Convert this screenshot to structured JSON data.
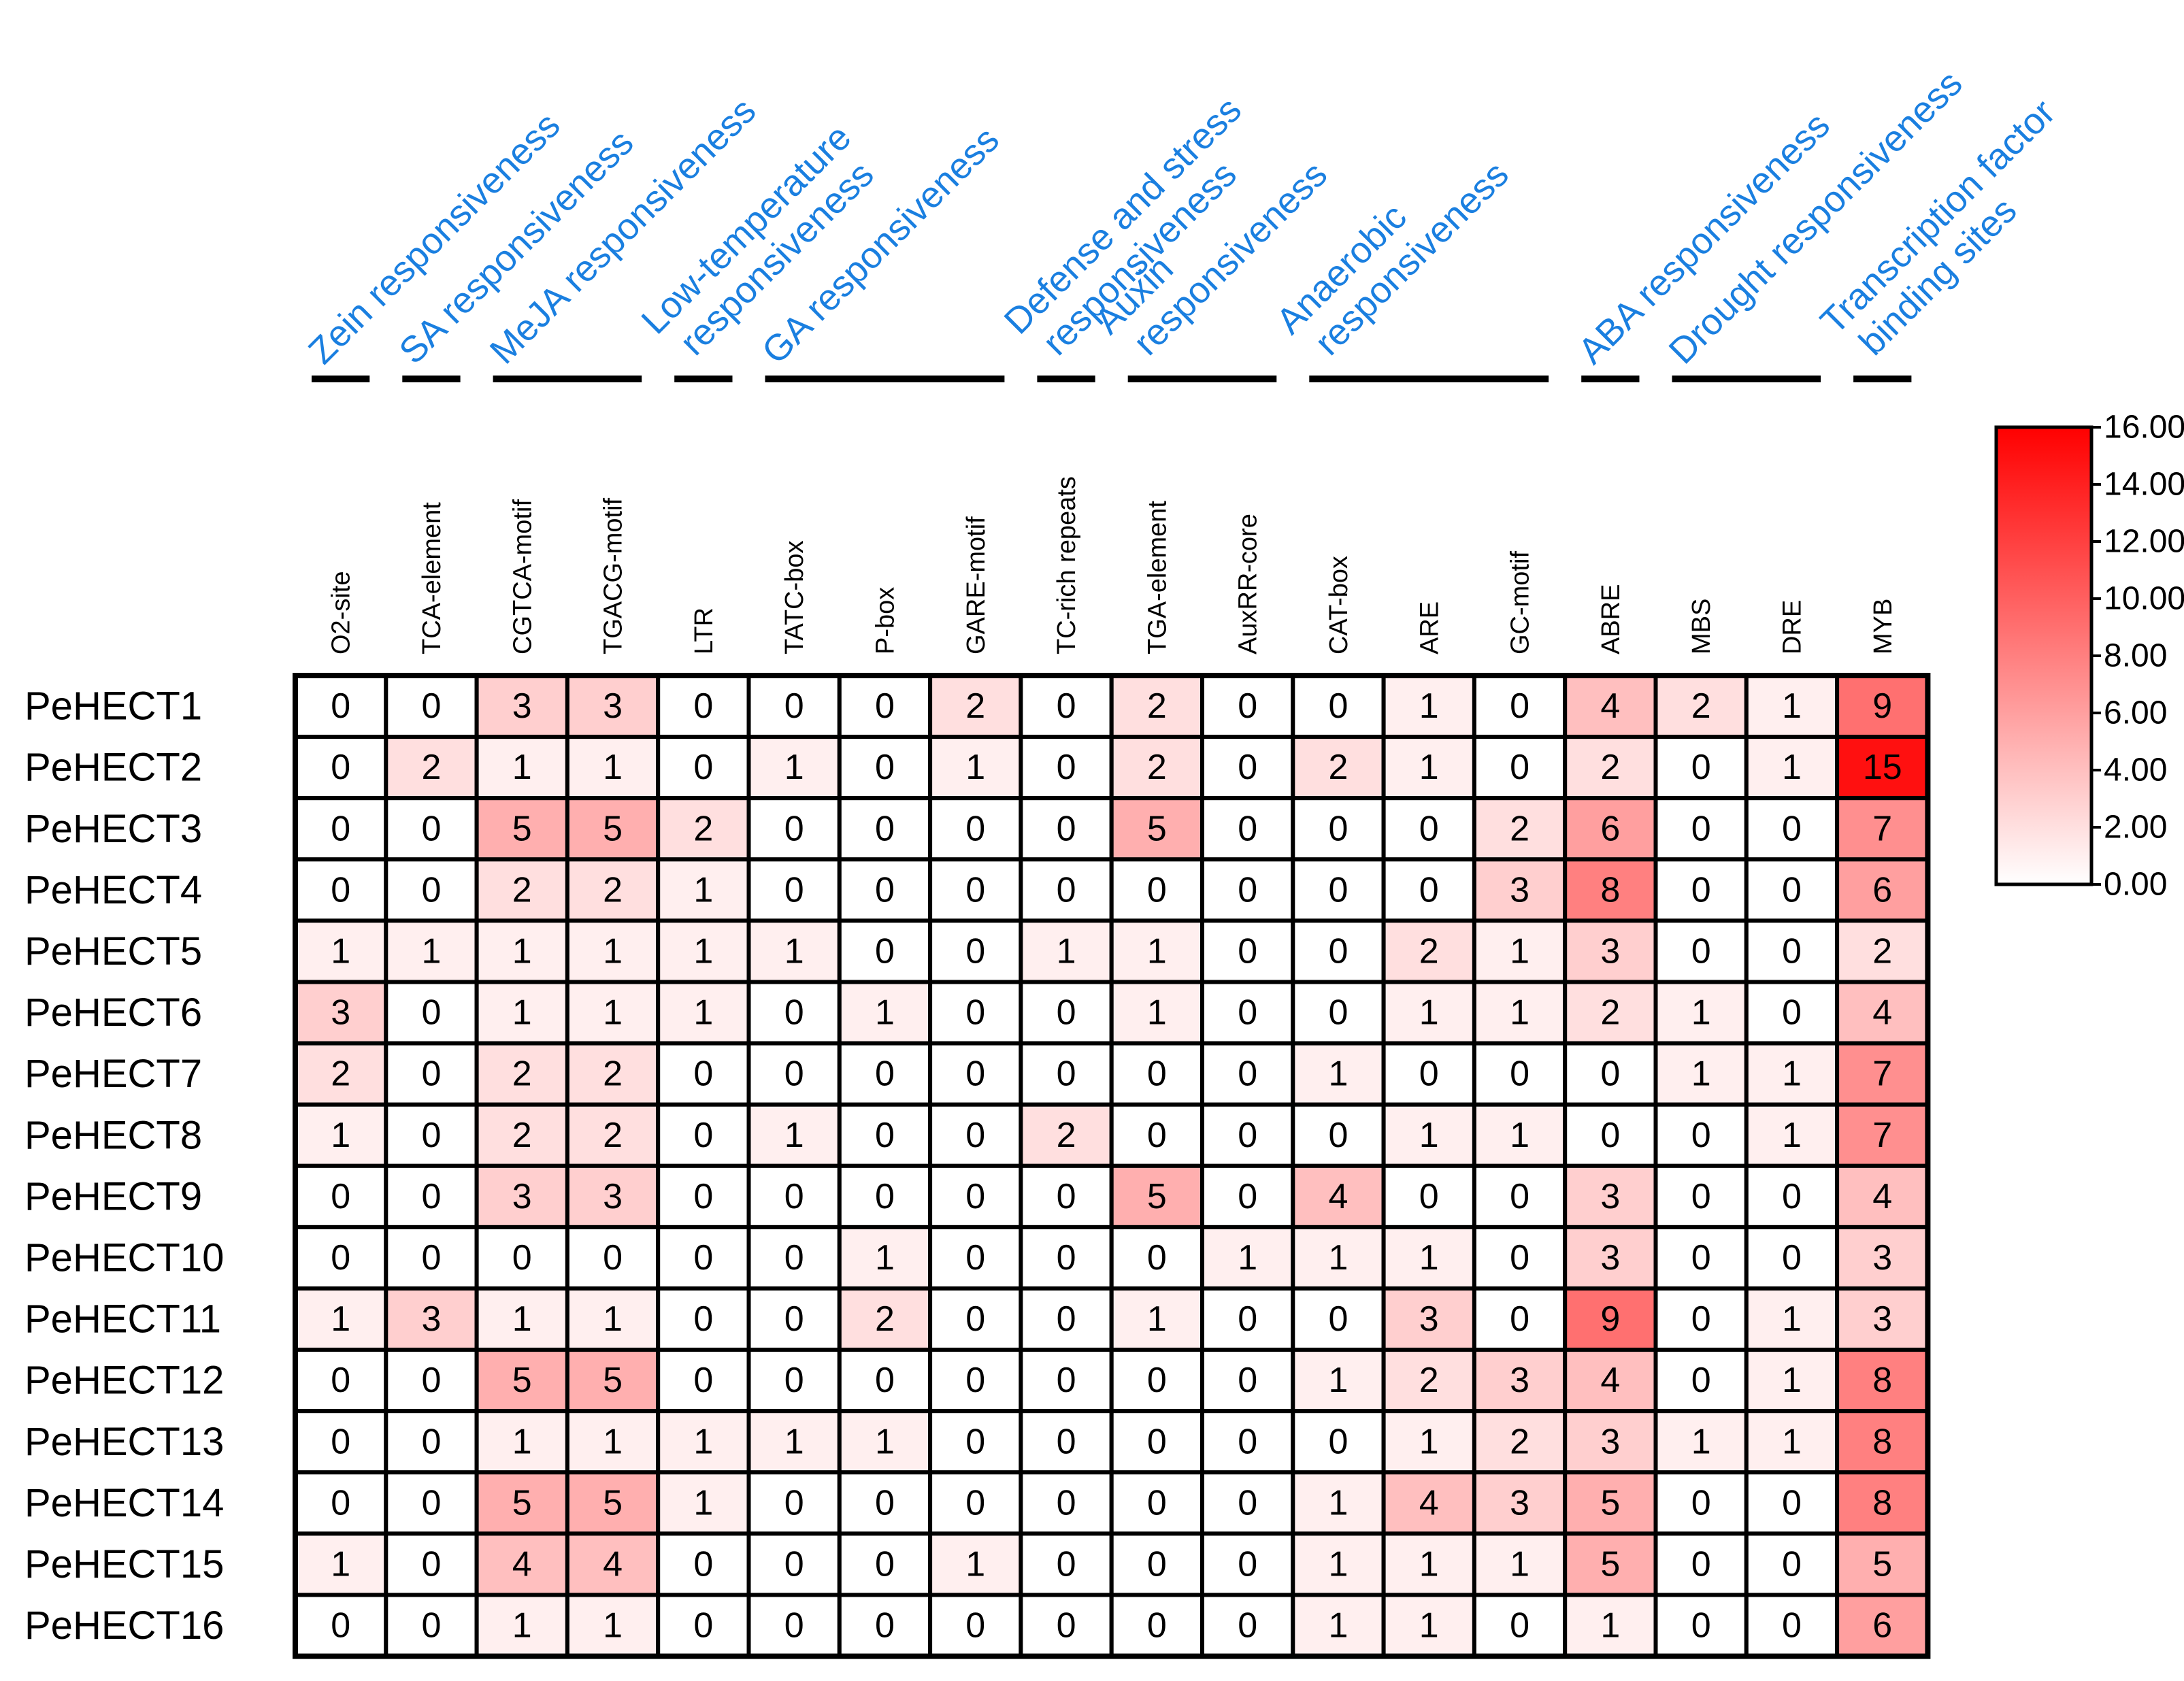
{
  "chart_data": {
    "type": "heatmap",
    "columns": [
      "O2-site",
      "TCA-element",
      "CGTCA-motif",
      "TGACG-motif",
      "LTR",
      "TATC-box",
      "P-box",
      "GARE-motif",
      "TC-rich repeats",
      "TGA-element",
      "AuxRR-core",
      "CAT-box",
      "ARE",
      "GC-motif",
      "ABRE",
      "MBS",
      "DRE",
      "MYB"
    ],
    "rows": [
      "PeHECT1",
      "PeHECT2",
      "PeHECT3",
      "PeHECT4",
      "PeHECT5",
      "PeHECT6",
      "PeHECT7",
      "PeHECT8",
      "PeHECT9",
      "PeHECT10",
      "PeHECT11",
      "PeHECT12",
      "PeHECT13",
      "PeHECT14",
      "PeHECT15",
      "PeHECT16"
    ],
    "values": [
      [
        0,
        0,
        3,
        3,
        0,
        0,
        0,
        2,
        0,
        2,
        0,
        0,
        1,
        0,
        4,
        2,
        1,
        9
      ],
      [
        0,
        2,
        1,
        1,
        0,
        1,
        0,
        1,
        0,
        2,
        0,
        2,
        1,
        0,
        2,
        0,
        1,
        15
      ],
      [
        0,
        0,
        5,
        5,
        2,
        0,
        0,
        0,
        0,
        5,
        0,
        0,
        0,
        2,
        6,
        0,
        0,
        7
      ],
      [
        0,
        0,
        2,
        2,
        1,
        0,
        0,
        0,
        0,
        0,
        0,
        0,
        0,
        3,
        8,
        0,
        0,
        6
      ],
      [
        1,
        1,
        1,
        1,
        1,
        1,
        0,
        0,
        1,
        1,
        0,
        0,
        2,
        1,
        3,
        0,
        0,
        2
      ],
      [
        3,
        0,
        1,
        1,
        1,
        0,
        1,
        0,
        0,
        1,
        0,
        0,
        1,
        1,
        2,
        1,
        0,
        4
      ],
      [
        2,
        0,
        2,
        2,
        0,
        0,
        0,
        0,
        0,
        0,
        0,
        1,
        0,
        0,
        0,
        1,
        1,
        7
      ],
      [
        1,
        0,
        2,
        2,
        0,
        1,
        0,
        0,
        2,
        0,
        0,
        0,
        1,
        1,
        0,
        0,
        1,
        7
      ],
      [
        0,
        0,
        3,
        3,
        0,
        0,
        0,
        0,
        0,
        5,
        0,
        4,
        0,
        0,
        3,
        0,
        0,
        4
      ],
      [
        0,
        0,
        0,
        0,
        0,
        0,
        1,
        0,
        0,
        0,
        1,
        1,
        1,
        0,
        3,
        0,
        0,
        3
      ],
      [
        1,
        3,
        1,
        1,
        0,
        0,
        2,
        0,
        0,
        1,
        0,
        0,
        3,
        0,
        9,
        0,
        1,
        3
      ],
      [
        0,
        0,
        5,
        5,
        0,
        0,
        0,
        0,
        0,
        0,
        0,
        1,
        2,
        3,
        4,
        0,
        1,
        8
      ],
      [
        0,
        0,
        1,
        1,
        1,
        1,
        1,
        0,
        0,
        0,
        0,
        0,
        1,
        2,
        3,
        1,
        1,
        8
      ],
      [
        0,
        0,
        5,
        5,
        1,
        0,
        0,
        0,
        0,
        0,
        0,
        1,
        4,
        3,
        5,
        0,
        0,
        8
      ],
      [
        1,
        0,
        4,
        4,
        0,
        0,
        0,
        1,
        0,
        0,
        0,
        1,
        1,
        1,
        5,
        0,
        0,
        5
      ],
      [
        0,
        0,
        1,
        1,
        0,
        0,
        0,
        0,
        0,
        0,
        0,
        1,
        1,
        0,
        1,
        0,
        0,
        6
      ]
    ],
    "groups": [
      {
        "label": [
          "Zein responsiveness"
        ],
        "start": 0,
        "end": 0
      },
      {
        "label": [
          "SA responsiveness"
        ],
        "start": 1,
        "end": 1
      },
      {
        "label": [
          "MeJA responsiveness"
        ],
        "start": 2,
        "end": 3
      },
      {
        "label": [
          "Low-temperature",
          "responsiveness"
        ],
        "start": 4,
        "end": 4
      },
      {
        "label": [
          "GA responsiveness"
        ],
        "start": 5,
        "end": 7
      },
      {
        "label": [
          "Defense and stress",
          "responsiveness"
        ],
        "start": 8,
        "end": 8
      },
      {
        "label": [
          "Auxin",
          "responsiveness"
        ],
        "start": 9,
        "end": 10
      },
      {
        "label": [
          "Anaerobic",
          "responsiveness"
        ],
        "start": 11,
        "end": 13
      },
      {
        "label": [
          "ABA responsiveness"
        ],
        "start": 14,
        "end": 14
      },
      {
        "label": [
          "Drought responsiveness"
        ],
        "start": 15,
        "end": 16
      },
      {
        "label": [
          "Transcription factor",
          "binding sites"
        ],
        "start": 17,
        "end": 17
      }
    ],
    "colorbar": {
      "min": 0,
      "max": 16,
      "ticks": [
        "0.00",
        "2.00",
        "4.00",
        "6.00",
        "8.00",
        "10.00",
        "12.00",
        "14.00",
        "16.00"
      ],
      "min_color": "#ffffff",
      "max_color": "#ff0000"
    },
    "title": "",
    "xlabel": "",
    "ylabel": ""
  }
}
